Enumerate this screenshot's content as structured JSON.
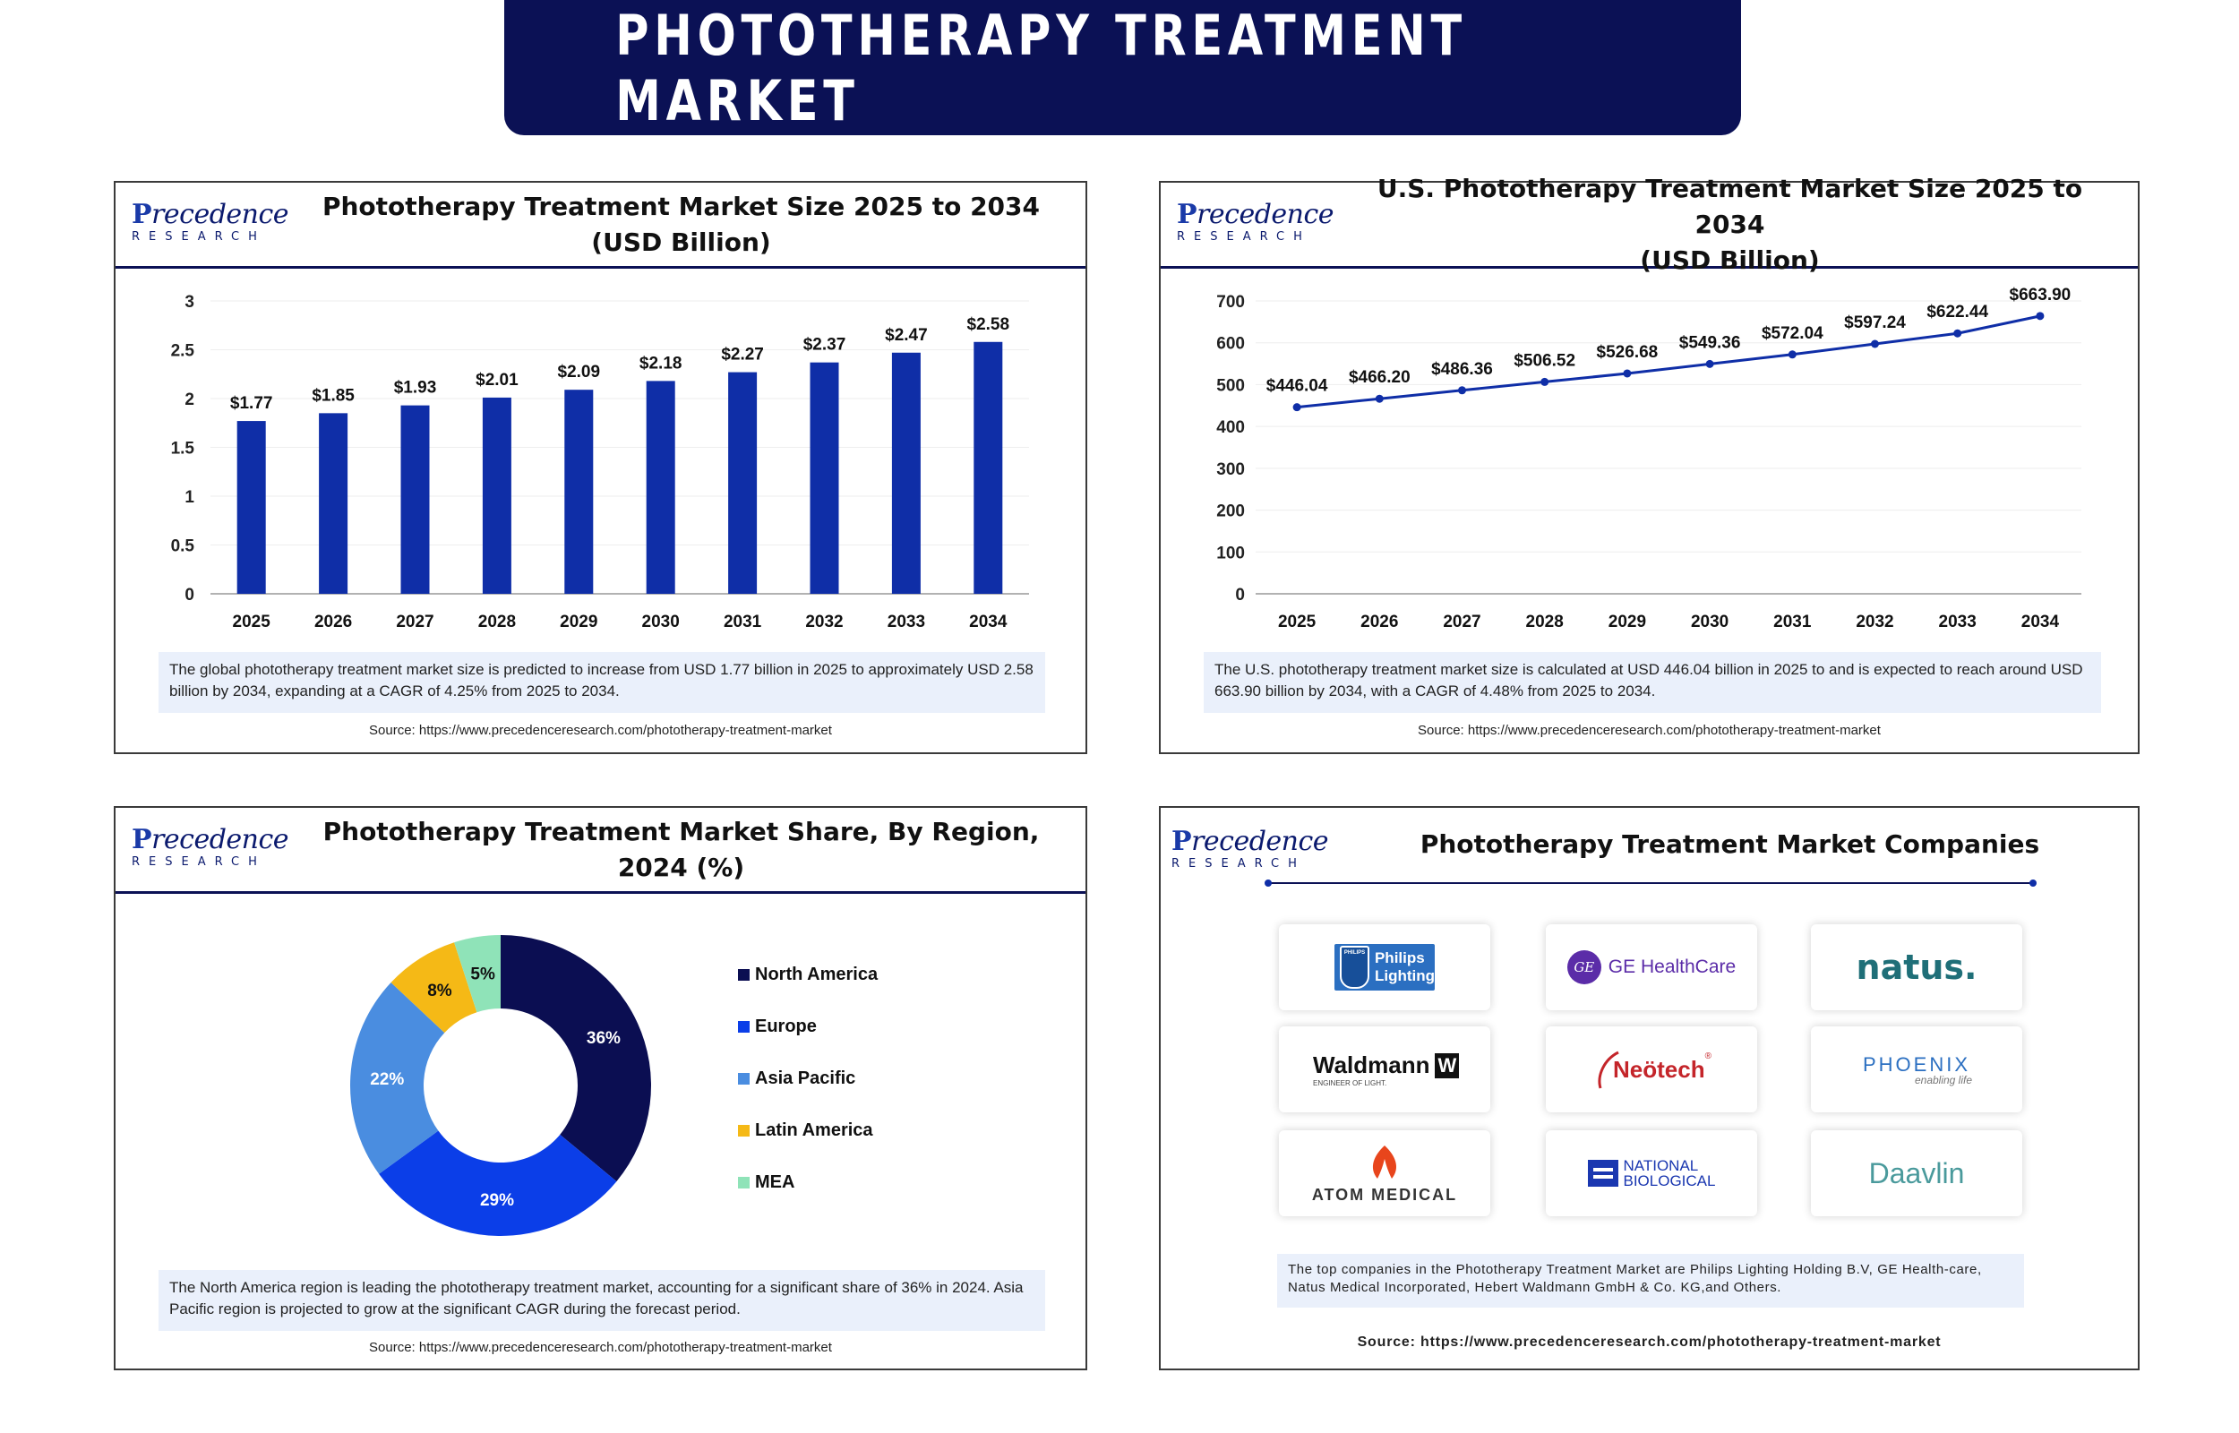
{
  "banner": {
    "title": "PHOTOTHERAPY TREATMENT MARKET"
  },
  "logo": {
    "wordmark_first": "P",
    "wordmark_rest": "recedence",
    "sub": "RESEARCH"
  },
  "colors": {
    "navy": "#0b1155",
    "bar": "#0f2ea7",
    "line": "#0f2ea7"
  },
  "panels": {
    "global": {
      "title": "Phototherapy Treatment Market Size 2025 to 2034 (USD Billion)",
      "note": "The global phototherapy treatment market size is predicted to increase from USD 1.77 billion in 2025 to approximately USD 2.58 billion by 2034, expanding at a CAGR of 4.25% from 2025 to 2034.",
      "source": "Source: https://www.precedenceresearch.com/phototherapy-treatment-market"
    },
    "us": {
      "title_line1": "U.S. Phototherapy Treatment Market Size 2025 to 2034",
      "title_line2": "(USD Billion)",
      "note": "The U.S. phototherapy treatment market size is calculated at USD 446.04 billion in 2025 to and is expected to reach around USD 663.90 billion by 2034, with a CAGR of 4.48% from 2025 to 2034.",
      "source": "Source: https://www.precedenceresearch.com/phototherapy-treatment-market"
    },
    "region": {
      "title": "Phototherapy Treatment Market  Share, By Region, 2024 (%)",
      "note": "The North America region is leading the phototherapy treatment market, accounting for a significant share of 36% in 2024. Asia Pacific region is projected to grow at the significant CAGR during the forecast period.",
      "source": "Source: https://www.precedenceresearch.com/phototherapy-treatment-market"
    },
    "companies": {
      "title": "Phototherapy Treatment Market Companies",
      "note": "The top companies in the Phototherapy Treatment Market  are Philips Lighting Holding B.V, GE Health-care, Natus Medical Incorporated, Hebert Waldmann GmbH & Co. KG,and Others.",
      "source": "Source: https://www.precedenceresearch.com/phototherapy-treatment-market",
      "logos": {
        "philips_line1": "Philips",
        "philips_line2": "Lighting",
        "philips_badge": "PHILIPS",
        "ge": "GE HealthCare",
        "ge_mark": "GE",
        "natus": "natus.",
        "waldmann": "Waldmann",
        "waldmann_mark": "W",
        "waldmann_tag": "ENGINEER OF LIGHT.",
        "neotech": "Neötech",
        "neotech_reg": "®",
        "phoenix": "PHOENIX",
        "phoenix_tag": "enabling life",
        "atom": "ATOM MEDICAL",
        "natbio_line1": "NATIONAL",
        "natbio_line2": "BIOLOGICAL",
        "daavlin": "Daavlin"
      }
    }
  },
  "chart_data": [
    {
      "type": "bar",
      "title": "Phototherapy Treatment Market Size 2025 to 2034 (USD Billion)",
      "categories": [
        "2025",
        "2026",
        "2027",
        "2028",
        "2029",
        "2030",
        "2031",
        "2032",
        "2033",
        "2034"
      ],
      "values": [
        1.77,
        1.85,
        1.93,
        2.01,
        2.09,
        2.18,
        2.27,
        2.37,
        2.47,
        2.58
      ],
      "data_labels": [
        "$1.77",
        "$1.85",
        "$1.93",
        "$2.01",
        "$2.09",
        "$2.18",
        "$2.27",
        "$2.37",
        "$2.47",
        "$2.58"
      ],
      "yticks": [
        "0",
        "0.5",
        "1",
        "1.5",
        "2",
        "2.5",
        "3"
      ],
      "ylim": [
        0,
        3
      ],
      "grid": true
    },
    {
      "type": "line",
      "title": "U.S. Phototherapy Treatment Market Size 2025 to 2034 (USD Billion)",
      "categories": [
        "2025",
        "2026",
        "2027",
        "2028",
        "2029",
        "2030",
        "2031",
        "2032",
        "2033",
        "2034"
      ],
      "values": [
        446.04,
        466.2,
        486.36,
        506.52,
        526.68,
        549.36,
        572.04,
        597.24,
        622.44,
        663.9
      ],
      "data_labels": [
        "$446.04",
        "$466.20",
        "$486.36",
        "$506.52",
        "$526.68",
        "$549.36",
        "$572.04",
        "$597.24",
        "$622.44",
        "$663.90"
      ],
      "yticks": [
        "0",
        "100",
        "200",
        "300",
        "400",
        "500",
        "600",
        "700"
      ],
      "ylim": [
        0,
        700
      ],
      "grid": true
    },
    {
      "type": "pie",
      "title": "Phototherapy Treatment Market  Share, By Region, 2024 (%)",
      "labels": [
        "North America",
        "Europe",
        "Asia Pacific",
        "Latin America",
        "MEA"
      ],
      "values": [
        36,
        29,
        22,
        8,
        5
      ],
      "data_labels": [
        "36%",
        "29%",
        "22%",
        "8%",
        "5%"
      ],
      "colors": [
        "#0b0e52",
        "#0b3ee8",
        "#4a8de0",
        "#f5b916",
        "#8fe3b8"
      ],
      "donut": true,
      "legend": "right"
    }
  ]
}
